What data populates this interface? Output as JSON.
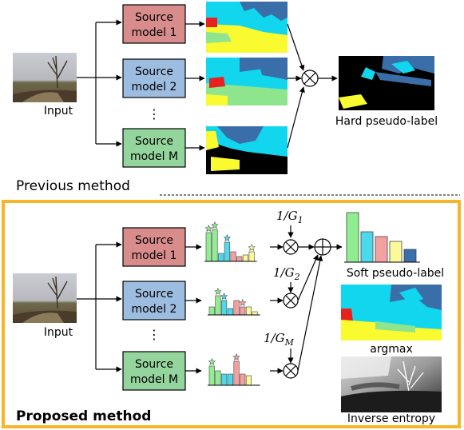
{
  "top": {
    "input_label": "Input",
    "sources": [
      {
        "line1": "Source",
        "line2": "model 1",
        "color": "#d88c8c"
      },
      {
        "line1": "Source",
        "line2": "model 2",
        "color": "#9dbde0"
      },
      {
        "line1": "Source",
        "line2": "model M",
        "color": "#93d59c"
      }
    ],
    "dots": "⋮",
    "output_label": "Hard pseudo-label",
    "section_label": "Previous method"
  },
  "bottom": {
    "input_label": "Input",
    "sources": [
      {
        "line1": "Source",
        "line2": "model 1",
        "color": "#d88c8c"
      },
      {
        "line1": "Source",
        "line2": "model 2",
        "color": "#9dbde0"
      },
      {
        "line1": "Source",
        "line2": "model M",
        "color": "#93d59c"
      }
    ],
    "dots": "⋮",
    "weights": [
      {
        "prefix": "1/G",
        "sub": "1"
      },
      {
        "prefix": "1/G",
        "sub": "2"
      },
      {
        "prefix": "1/G",
        "sub": "M"
      }
    ],
    "soft_label": "Soft pseudo-label",
    "argmax_label": "argmax",
    "entropy_label": "Inverse entropy",
    "section_label": "Proposed method"
  },
  "colors": {
    "frame": "#f7b52a",
    "class_colors": [
      "#90ee90",
      "#4dd9ec",
      "#f4a0a0",
      "#fafa9a",
      "#3a6ea8"
    ]
  }
}
